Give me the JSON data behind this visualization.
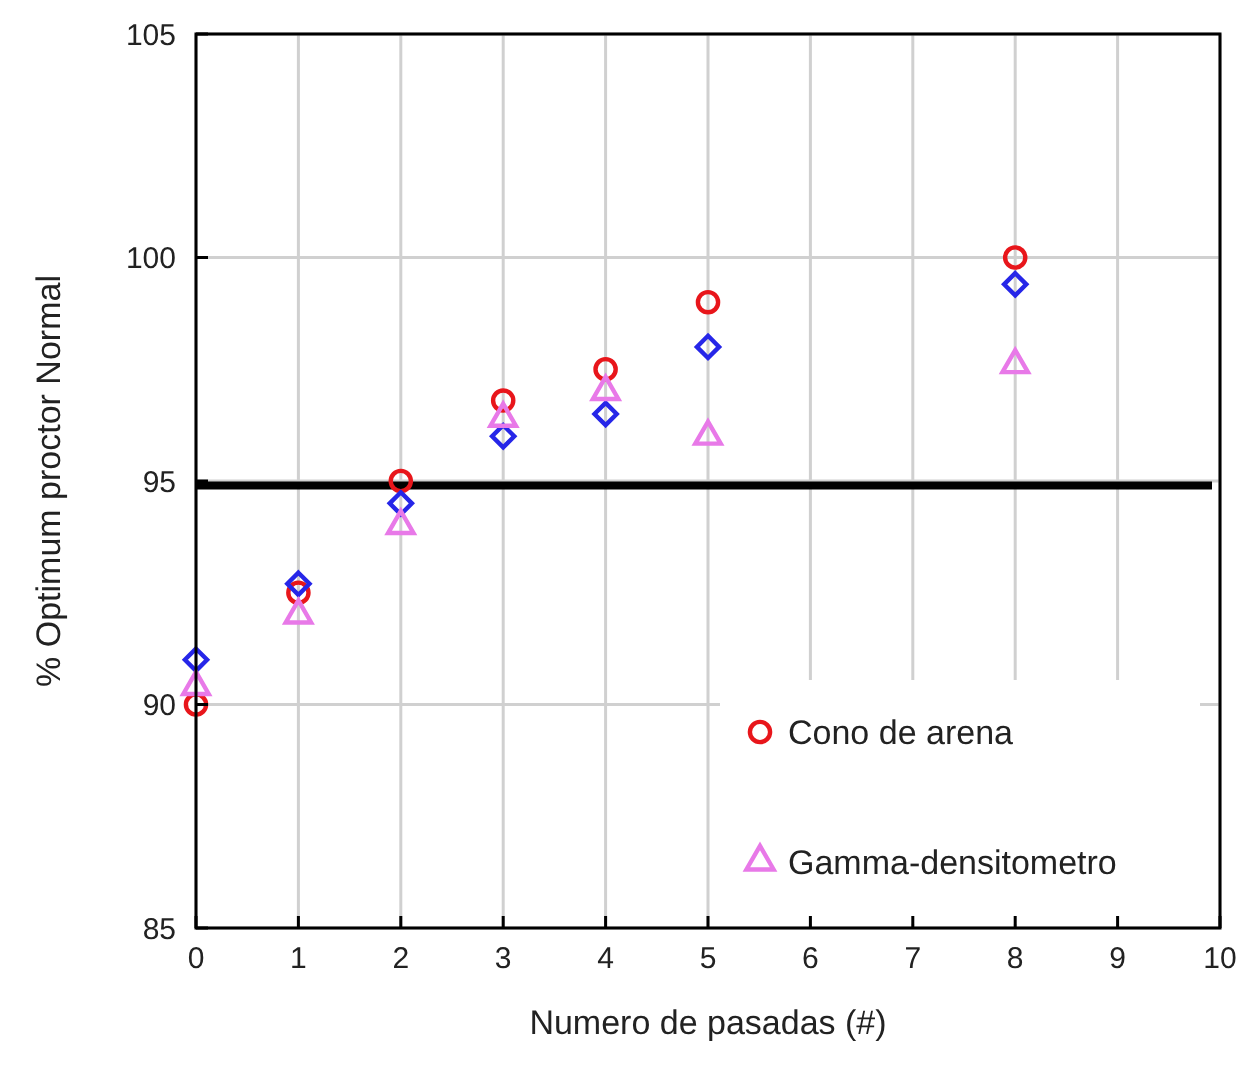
{
  "chart_data": {
    "type": "scatter",
    "xlabel": "Numero de pasadas (#)",
    "ylabel": "% Optimum proctor Normal",
    "x": [
      0,
      1,
      2,
      3,
      4,
      5,
      8
    ],
    "series": [
      {
        "name": "Cono de arena",
        "color": "#e8161b",
        "marker": "circle",
        "values": [
          90.0,
          92.5,
          95.0,
          96.8,
          97.5,
          99.0,
          100.0
        ]
      },
      {
        "color": "#2626e8",
        "marker": "diamond",
        "values": [
          91.0,
          92.7,
          94.5,
          96.0,
          96.5,
          98.0,
          99.4
        ]
      },
      {
        "name": "Gamma-densitometro",
        "color": "#e879e8",
        "marker": "triangle",
        "values": [
          90.4,
          92.0,
          94.0,
          96.4,
          97.0,
          96.0,
          97.6
        ]
      }
    ],
    "xlim": [
      0,
      10
    ],
    "xticks": [
      0,
      1,
      2,
      3,
      4,
      5,
      6,
      7,
      8,
      9,
      10
    ],
    "ylim": [
      85,
      105
    ],
    "yticks": [
      85,
      90,
      95,
      100,
      105
    ],
    "ref_lines": [
      {
        "axis": "y",
        "value": 94.9,
        "color": "#000000"
      }
    ],
    "grid": true,
    "legend": "bottom right"
  }
}
